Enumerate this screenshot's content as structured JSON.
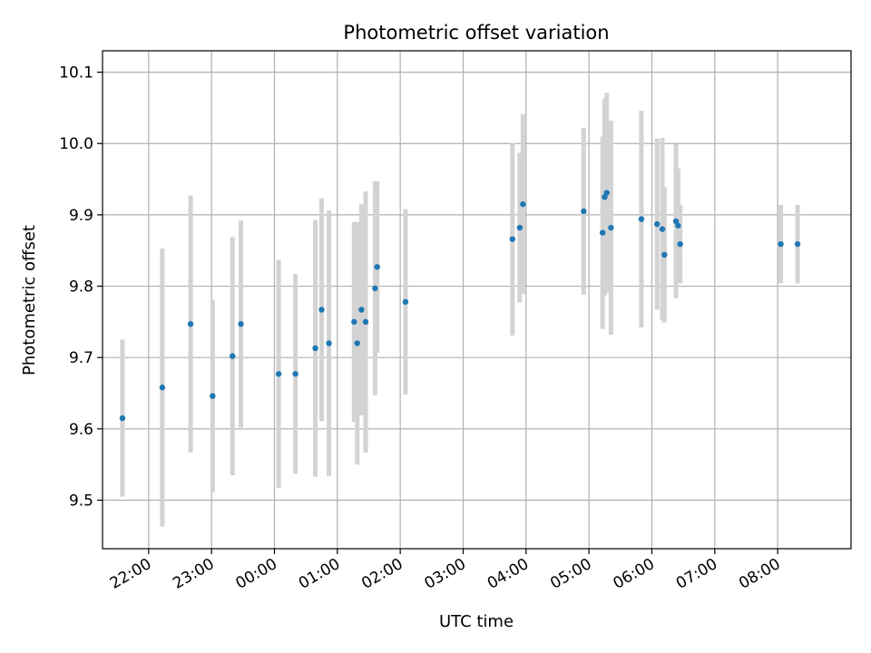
{
  "chart_data": {
    "type": "scatter",
    "title": "Photometric offset variation",
    "xlabel": "UTC time",
    "ylabel": "Photometric offset",
    "x_ticks": [
      "22:00",
      "23:00",
      "00:00",
      "01:00",
      "02:00",
      "03:00",
      "04:00",
      "05:00",
      "06:00",
      "07:00",
      "08:00"
    ],
    "y_ticks": [
      "9.5",
      "9.6",
      "9.7",
      "9.8",
      "9.9",
      "10.0",
      "10.1"
    ],
    "x_range": [
      "21:16",
      "09:10"
    ],
    "ylim": [
      9.432,
      10.13
    ],
    "grid": true,
    "colors": {
      "point": "#1f77b4",
      "errorbar": "#d3d3d3",
      "grid": "#b0b0b0"
    },
    "series": [
      {
        "points": [
          {
            "x": "21:35",
            "y": 9.615,
            "err": 0.11
          },
          {
            "x": "22:13",
            "y": 9.658,
            "err": 0.195
          },
          {
            "x": "22:40",
            "y": 9.747,
            "err": 0.18
          },
          {
            "x": "23:01",
            "y": 9.646,
            "err": 0.135
          },
          {
            "x": "23:20",
            "y": 9.702,
            "err": 0.167
          },
          {
            "x": "23:28",
            "y": 9.747,
            "err": 0.145
          },
          {
            "x": "00:04",
            "y": 9.677,
            "err": 0.16
          },
          {
            "x": "00:20",
            "y": 9.677,
            "err": 0.14
          },
          {
            "x": "00:39",
            "y": 9.713,
            "err": 0.18
          },
          {
            "x": "00:45",
            "y": 9.767,
            "err": 0.156
          },
          {
            "x": "00:52",
            "y": 9.72,
            "err": 0.186
          },
          {
            "x": "01:16",
            "y": 9.75,
            "err": 0.14
          },
          {
            "x": "01:19",
            "y": 9.72,
            "err": 0.17
          },
          {
            "x": "01:23",
            "y": 9.767,
            "err": 0.148
          },
          {
            "x": "01:27",
            "y": 9.75,
            "err": 0.183
          },
          {
            "x": "01:36",
            "y": 9.797,
            "err": 0.15
          },
          {
            "x": "01:38",
            "y": 9.827,
            "err": 0.12
          },
          {
            "x": "02:05",
            "y": 9.778,
            "err": 0.13
          },
          {
            "x": "03:47",
            "y": 9.866,
            "err": 0.135
          },
          {
            "x": "03:54",
            "y": 9.882,
            "err": 0.105
          },
          {
            "x": "03:57",
            "y": 9.915,
            "err": 0.126
          },
          {
            "x": "04:55",
            "y": 9.905,
            "err": 0.117
          },
          {
            "x": "05:13",
            "y": 9.875,
            "err": 0.135
          },
          {
            "x": "05:15",
            "y": 9.925,
            "err": 0.138
          },
          {
            "x": "05:17",
            "y": 9.931,
            "err": 0.14
          },
          {
            "x": "05:21",
            "y": 9.882,
            "err": 0.15
          },
          {
            "x": "05:50",
            "y": 9.894,
            "err": 0.152
          },
          {
            "x": "06:05",
            "y": 9.887,
            "err": 0.12
          },
          {
            "x": "06:10",
            "y": 9.88,
            "err": 0.128
          },
          {
            "x": "06:12",
            "y": 9.844,
            "err": 0.095
          },
          {
            "x": "06:23",
            "y": 9.891,
            "err": 0.108
          },
          {
            "x": "06:25",
            "y": 9.885,
            "err": 0.08
          },
          {
            "x": "06:27",
            "y": 9.859,
            "err": 0.055
          },
          {
            "x": "08:03",
            "y": 9.859,
            "err": 0.055
          },
          {
            "x": "08:19",
            "y": 9.859,
            "err": 0.055
          }
        ]
      }
    ]
  }
}
